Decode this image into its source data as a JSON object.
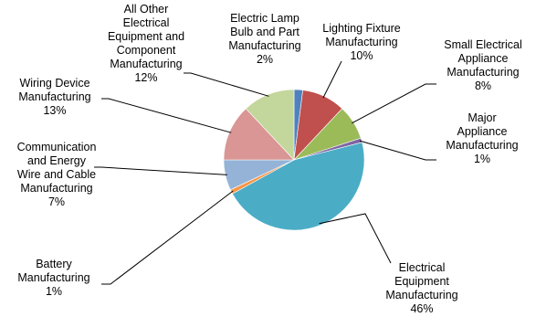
{
  "chart_data": {
    "type": "pie",
    "title": "",
    "labels": [
      "Electric Lamp Bulb and Part Manufacturing",
      "Lighting Fixture Manufacturing",
      "Small Electrical Appliance Manufacturing",
      "Major Appliance Manufacturing",
      "Electrical Equipment Manufacturing",
      "Battery Manufacturing",
      "Communication and Energy Wire and Cable Manufacturing",
      "Wiring Device Manufacturing",
      "All Other Electrical Equipment and Component Manufacturing"
    ],
    "values": [
      2,
      10,
      8,
      1,
      46,
      1,
      7,
      13,
      12
    ],
    "value_labels": [
      "2%",
      "10%",
      "8%",
      "1%",
      "46%",
      "1%",
      "7%",
      "13%",
      "12%"
    ],
    "colors": [
      "#4f81bd",
      "#c0504d",
      "#9bbb59",
      "#8064a2",
      "#4bacc6",
      "#f79646",
      "#95b3d7",
      "#d99694",
      "#c3d69b"
    ],
    "start_angle_deg": 0,
    "direction": "clockwise",
    "legend": "none",
    "label_lines": [
      [
        "Electric Lamp",
        "Bulb and Part",
        "Manufacturing",
        "2%"
      ],
      [
        "Lighting Fixture",
        "Manufacturing",
        "10%"
      ],
      [
        "Small Electrical",
        "Appliance",
        "Manufacturing",
        "8%"
      ],
      [
        "Major",
        "Appliance",
        "Manufacturing",
        "1%"
      ],
      [
        "Electrical",
        "Equipment",
        "Manufacturing",
        "46%"
      ],
      [
        "Battery",
        "Manufacturing",
        "1%"
      ],
      [
        "Communication",
        "and Energy",
        "Wire and Cable",
        "Manufacturing",
        "7%"
      ],
      [
        "Wiring Device",
        "Manufacturing",
        "13%"
      ],
      [
        "All Other",
        "Electrical",
        "Equipment and",
        "Component",
        "Manufacturing",
        "12%"
      ]
    ]
  }
}
